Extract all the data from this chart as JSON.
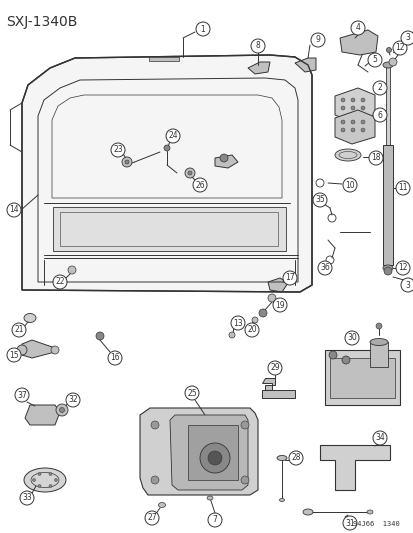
{
  "title": "SXJ-1340B",
  "footer": "94J66  1340",
  "bg_color": "#ffffff",
  "title_fontsize": 10,
  "figsize": [
    4.14,
    5.33
  ],
  "dpi": 100,
  "line_color": "#333333",
  "lw": 0.7
}
